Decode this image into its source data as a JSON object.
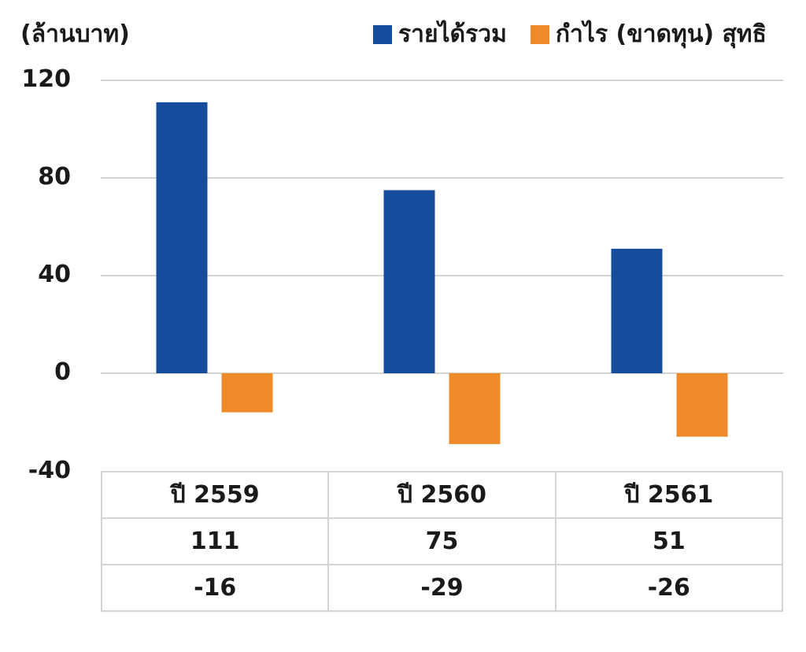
{
  "chart_data": {
    "type": "bar",
    "unit_label": "(ล้านบาท)",
    "categories": [
      "ปี 2559",
      "ปี 2560",
      "ปี 2561"
    ],
    "series": [
      {
        "name": "รายได้รวม",
        "values": [
          111,
          75,
          51
        ],
        "color": "#154c9c"
      },
      {
        "name": "กำไร (ขาดทุน) สุทธิ",
        "values": [
          -16,
          -29,
          -26
        ],
        "color": "#ef8a2a"
      }
    ],
    "ylim": [
      -40,
      120
    ],
    "yticks": [
      "120",
      "80",
      "40",
      "0",
      "-40"
    ],
    "grid": true,
    "legend_position": "top",
    "data_table": {
      "rows": [
        [
          "ปี 2559",
          "ปี 2560",
          "ปี 2561"
        ],
        [
          "111",
          "75",
          "51"
        ],
        [
          "-16",
          "-29",
          "-26"
        ]
      ]
    }
  }
}
